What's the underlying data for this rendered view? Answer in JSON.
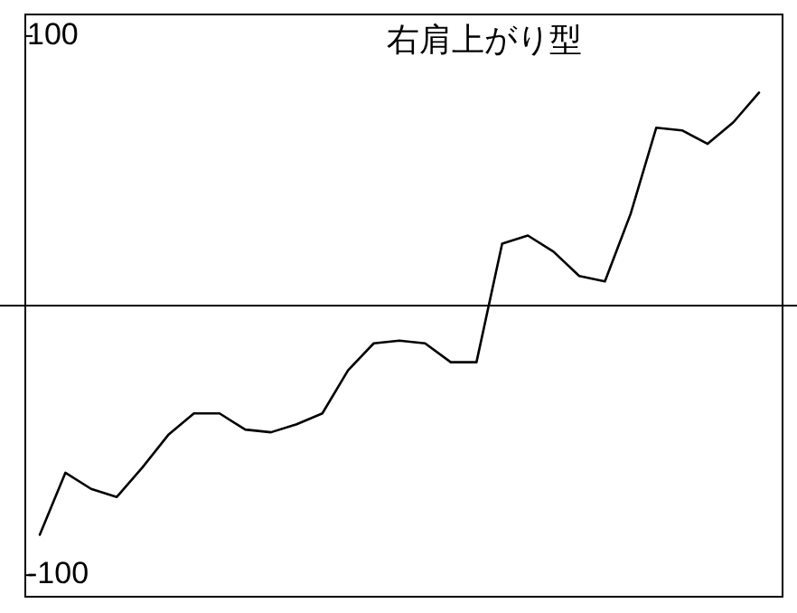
{
  "chart_data": {
    "type": "line",
    "title": "右肩上がり型",
    "categories": [
      null,
      null,
      null,
      null,
      null,
      null,
      null,
      null,
      null,
      null,
      null,
      null,
      null,
      null,
      null,
      null,
      null,
      null,
      null,
      null,
      null,
      null,
      null,
      null,
      null,
      null,
      null,
      null,
      null
    ],
    "series": [
      {
        "color": "#000000",
        "values": [
          -85,
          -62,
          -68,
          -71,
          -60,
          -48,
          -40,
          -40,
          -46,
          -47,
          -44,
          -40,
          -24,
          -14,
          -13,
          -14,
          -21,
          -21,
          23,
          26,
          20,
          11,
          9,
          34,
          66,
          65,
          60,
          68,
          79
        ]
      }
    ],
    "ylim": [
      -108,
      108
    ],
    "yticks": [
      -100,
      100
    ],
    "ref_lines": [
      {
        "axis": "y",
        "value": 0,
        "color": "#000000"
      }
    ],
    "marker": "none",
    "line_style": "solid",
    "grid": false
  }
}
